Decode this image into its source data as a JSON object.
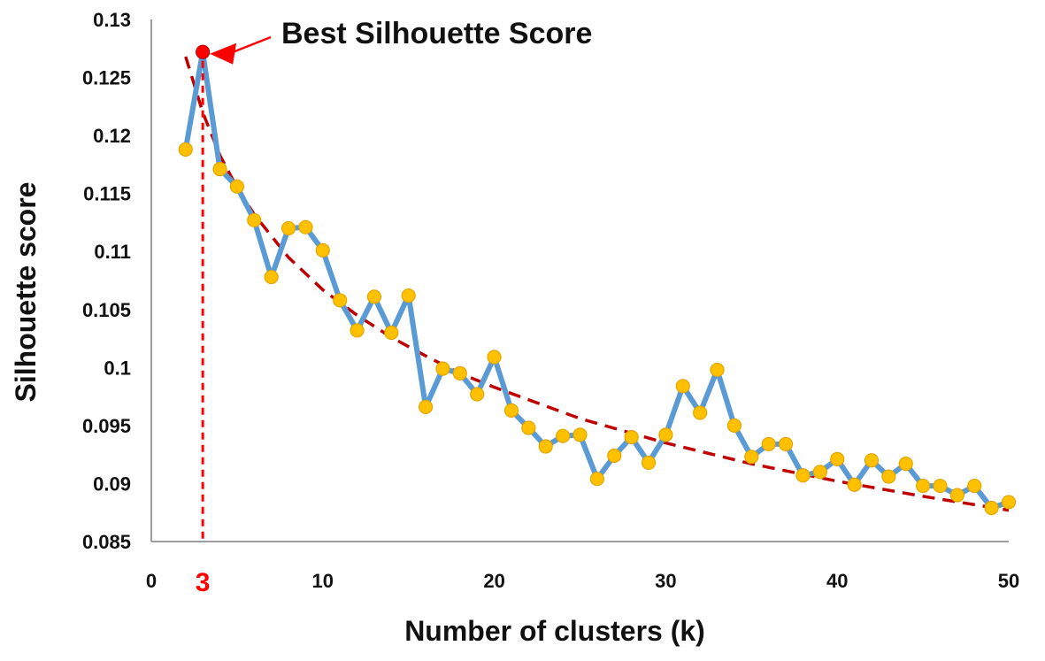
{
  "chart_data": {
    "type": "line",
    "xlabel": "Number of clusters (k)",
    "ylabel": "Silhouette score",
    "xlim": [
      0,
      50
    ],
    "ylim": [
      0.085,
      0.13
    ],
    "x_ticks": [
      0,
      10,
      20,
      30,
      40,
      50
    ],
    "y_ticks": [
      0.085,
      0.09,
      0.095,
      0.1,
      0.105,
      0.11,
      0.115,
      0.12,
      0.125,
      0.13
    ],
    "y_tick_labels": [
      "0.085",
      "0.09",
      "0.095",
      "0.1",
      "0.105",
      "0.11",
      "0.115",
      "0.12",
      "0.125",
      "0.13"
    ],
    "x_tick_labels": [
      "0",
      "10",
      "20",
      "30",
      "40",
      "50"
    ],
    "grid": false,
    "series": [
      {
        "x": [
          2,
          3,
          4,
          5,
          6,
          7,
          8,
          9,
          10,
          11,
          12,
          13,
          14,
          15,
          16,
          17,
          18,
          19,
          20,
          21,
          22,
          23,
          24,
          25,
          26,
          27,
          28,
          29,
          30,
          31,
          32,
          33,
          34,
          35,
          36,
          37,
          38,
          39,
          40,
          41,
          42,
          43,
          44,
          45,
          46,
          47,
          48,
          49,
          50
        ],
        "y": [
          0.1188,
          0.1272,
          0.1171,
          0.1156,
          0.1127,
          0.1078,
          0.112,
          0.1121,
          0.1101,
          0.1058,
          0.1032,
          0.1061,
          0.103,
          0.1062,
          0.0966,
          0.0999,
          0.0995,
          0.0977,
          0.1009,
          0.0963,
          0.0948,
          0.0932,
          0.0941,
          0.0942,
          0.0904,
          0.0924,
          0.094,
          0.0918,
          0.0942,
          0.0984,
          0.0961,
          0.0998,
          0.095,
          0.0923,
          0.0934,
          0.0934,
          0.0907,
          0.091,
          0.0921,
          0.0899,
          0.092,
          0.0906,
          0.0917,
          0.0898,
          0.0898,
          0.089,
          0.0898,
          0.0879,
          0.0884
        ],
        "color": "#5b9bd5",
        "marker_color": "#ffc000"
      },
      {
        "style": "dashed-trend",
        "color": "#c00000",
        "x": [
          2,
          3,
          4,
          5,
          6,
          8,
          10,
          12,
          14,
          16,
          18,
          20,
          25,
          30,
          35,
          40,
          45,
          50
        ],
        "y": [
          0.1268,
          0.122,
          0.1183,
          0.1155,
          0.1132,
          0.1095,
          0.1067,
          0.1045,
          0.1026,
          0.101,
          0.0995,
          0.0983,
          0.0956,
          0.0935,
          0.0917,
          0.0902,
          0.0889,
          0.0877
        ]
      }
    ],
    "highlight": {
      "x": 3,
      "y": 0.1272,
      "color": "#ff0000",
      "label": "3",
      "annotation": "Best Silhouette Score"
    }
  }
}
